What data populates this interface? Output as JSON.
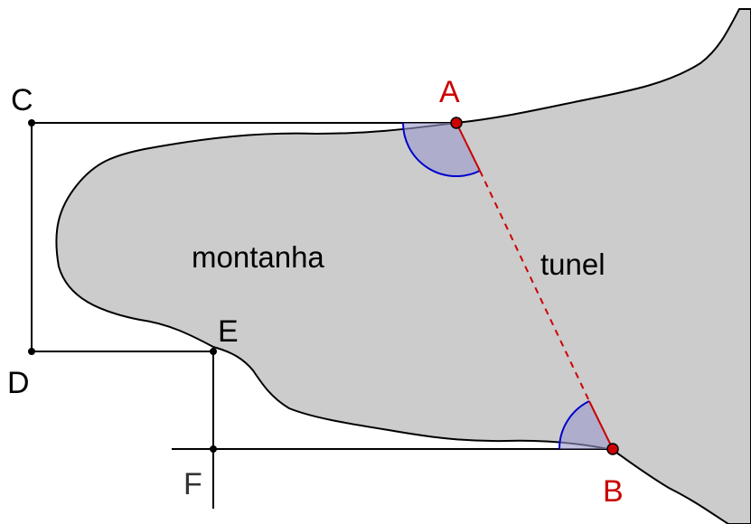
{
  "points": {
    "A": "A",
    "B": "B",
    "C": "C",
    "D": "D",
    "E": "E",
    "F": "F"
  },
  "labels": {
    "mountain": "montanha",
    "tunnel": "tunel"
  },
  "colors": {
    "mountain_fill": "#cccccc",
    "outline": "#000000",
    "tunnel_point": "#cc0000",
    "tunnel_line": "#cc0000",
    "angle_arc": "#0000cc",
    "angle_fill": "#9999cc",
    "label_dark": "#000000",
    "label_red": "#cc0000",
    "label_gray": "#333333"
  }
}
